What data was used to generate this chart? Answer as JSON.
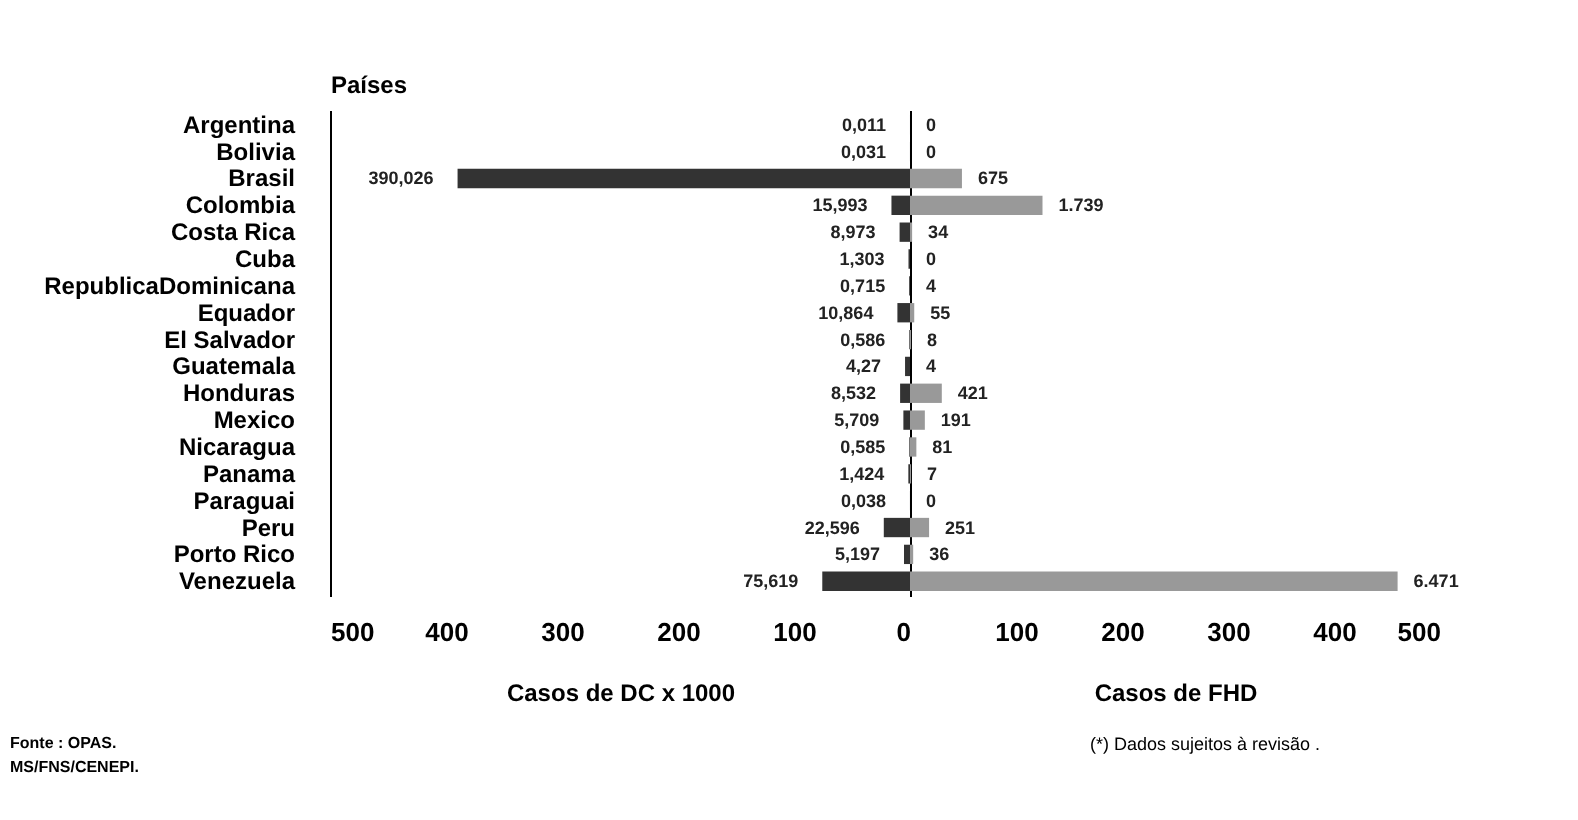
{
  "chart_data": [
    {
      "type": "bar",
      "orientation": "horizontal",
      "ylabel": "Países",
      "xlabel": "Casos de DC  x 1000",
      "categories": [
        "Argentina",
        "Bolivia",
        "Brasil",
        "Colombia",
        "Costa Rica",
        "Cuba",
        "RepublicaDominicana",
        "Equador",
        "El Salvador",
        "Guatemala",
        "Honduras",
        "Mexico",
        "Nicaragua",
        "Panama",
        "Paraguai",
        "Peru",
        "Porto Rico",
        "Venezuela"
      ],
      "values": [
        0.011,
        0.031,
        390.026,
        15.993,
        8.973,
        1.303,
        0.715,
        10.864,
        0.586,
        4.27,
        8.532,
        5.709,
        0.585,
        1.424,
        0.038,
        22.596,
        5.197,
        75.619
      ],
      "value_labels": [
        "0,011",
        "0,031",
        "390,026",
        "15,993",
        "8,973",
        "1,303",
        "0,715",
        "10,864",
        "0,586",
        "4,27",
        "8,532",
        "5,709",
        "0,585",
        "1,424",
        "0,038",
        "22,596",
        "5,197",
        "75,619"
      ],
      "color": "#333333",
      "xlim": [
        500,
        0
      ],
      "xticks": [
        500,
        400,
        300,
        200,
        100,
        0
      ],
      "annotations": [
        "Fonte : OPAS.",
        "MS/FNS/CENEPI."
      ]
    },
    {
      "type": "bar",
      "orientation": "horizontal",
      "xlabel": "Casos de FHD",
      "categories": [
        "Argentina",
        "Bolivia",
        "Brasil",
        "Colombia",
        "Costa Rica",
        "Cuba",
        "RepublicaDominicana",
        "Equador",
        "El Salvador",
        "Guatemala",
        "Honduras",
        "Mexico",
        "Nicaragua",
        "Panama",
        "Paraguai",
        "Peru",
        "Porto Rico",
        "Venezuela"
      ],
      "values": [
        0,
        0,
        49,
        125,
        2,
        0,
        0,
        4,
        1,
        0,
        30,
        14,
        6,
        1,
        0,
        18,
        3,
        460
      ],
      "color": "#999999",
      "xlim": [
        0,
        500
      ],
      "xticks": [
        100,
        200,
        300,
        400,
        500
      ],
      "tick_labels": "x",
      "annotations": [
        {
          "text": "0",
          "x": 0,
          "y": "Argentina"
        },
        {
          "text": "0",
          "x": 0,
          "y": "Bolivia"
        },
        {
          "text": "675",
          "x": 49,
          "y": "Brasil"
        },
        {
          "text": "1.739",
          "x": 125,
          "y": "Colombia"
        },
        {
          "text": "34",
          "x": 2,
          "y": "Costa Rica"
        },
        {
          "text": "0",
          "x": 0,
          "y": "Cuba"
        },
        {
          "text": "4",
          "x": 0,
          "y": "RepublicaDominicana"
        },
        {
          "text": "55",
          "x": 4,
          "y": "Equador"
        },
        {
          "text": "8",
          "x": 1,
          "y": "El Salvador"
        },
        {
          "text": "4",
          "x": 0,
          "y": "Guatemala"
        },
        {
          "text": "421",
          "x": 30,
          "y": "Honduras"
        },
        {
          "text": "191",
          "x": 14,
          "y": "Mexico"
        },
        {
          "text": "81",
          "x": 6,
          "y": "Nicaragua"
        },
        {
          "text": "7",
          "x": 1,
          "y": "Panama"
        },
        {
          "text": "0",
          "x": 0,
          "y": "Paraguai"
        },
        {
          "text": "251",
          "x": 18,
          "y": "Peru"
        },
        {
          "text": "36",
          "x": 3,
          "y": "Porto Rico"
        },
        {
          "text": "6.471",
          "x": 460,
          "y": "Venezuela"
        },
        "(*) Dados sujeitos à revisão ."
      ]
    }
  ]
}
